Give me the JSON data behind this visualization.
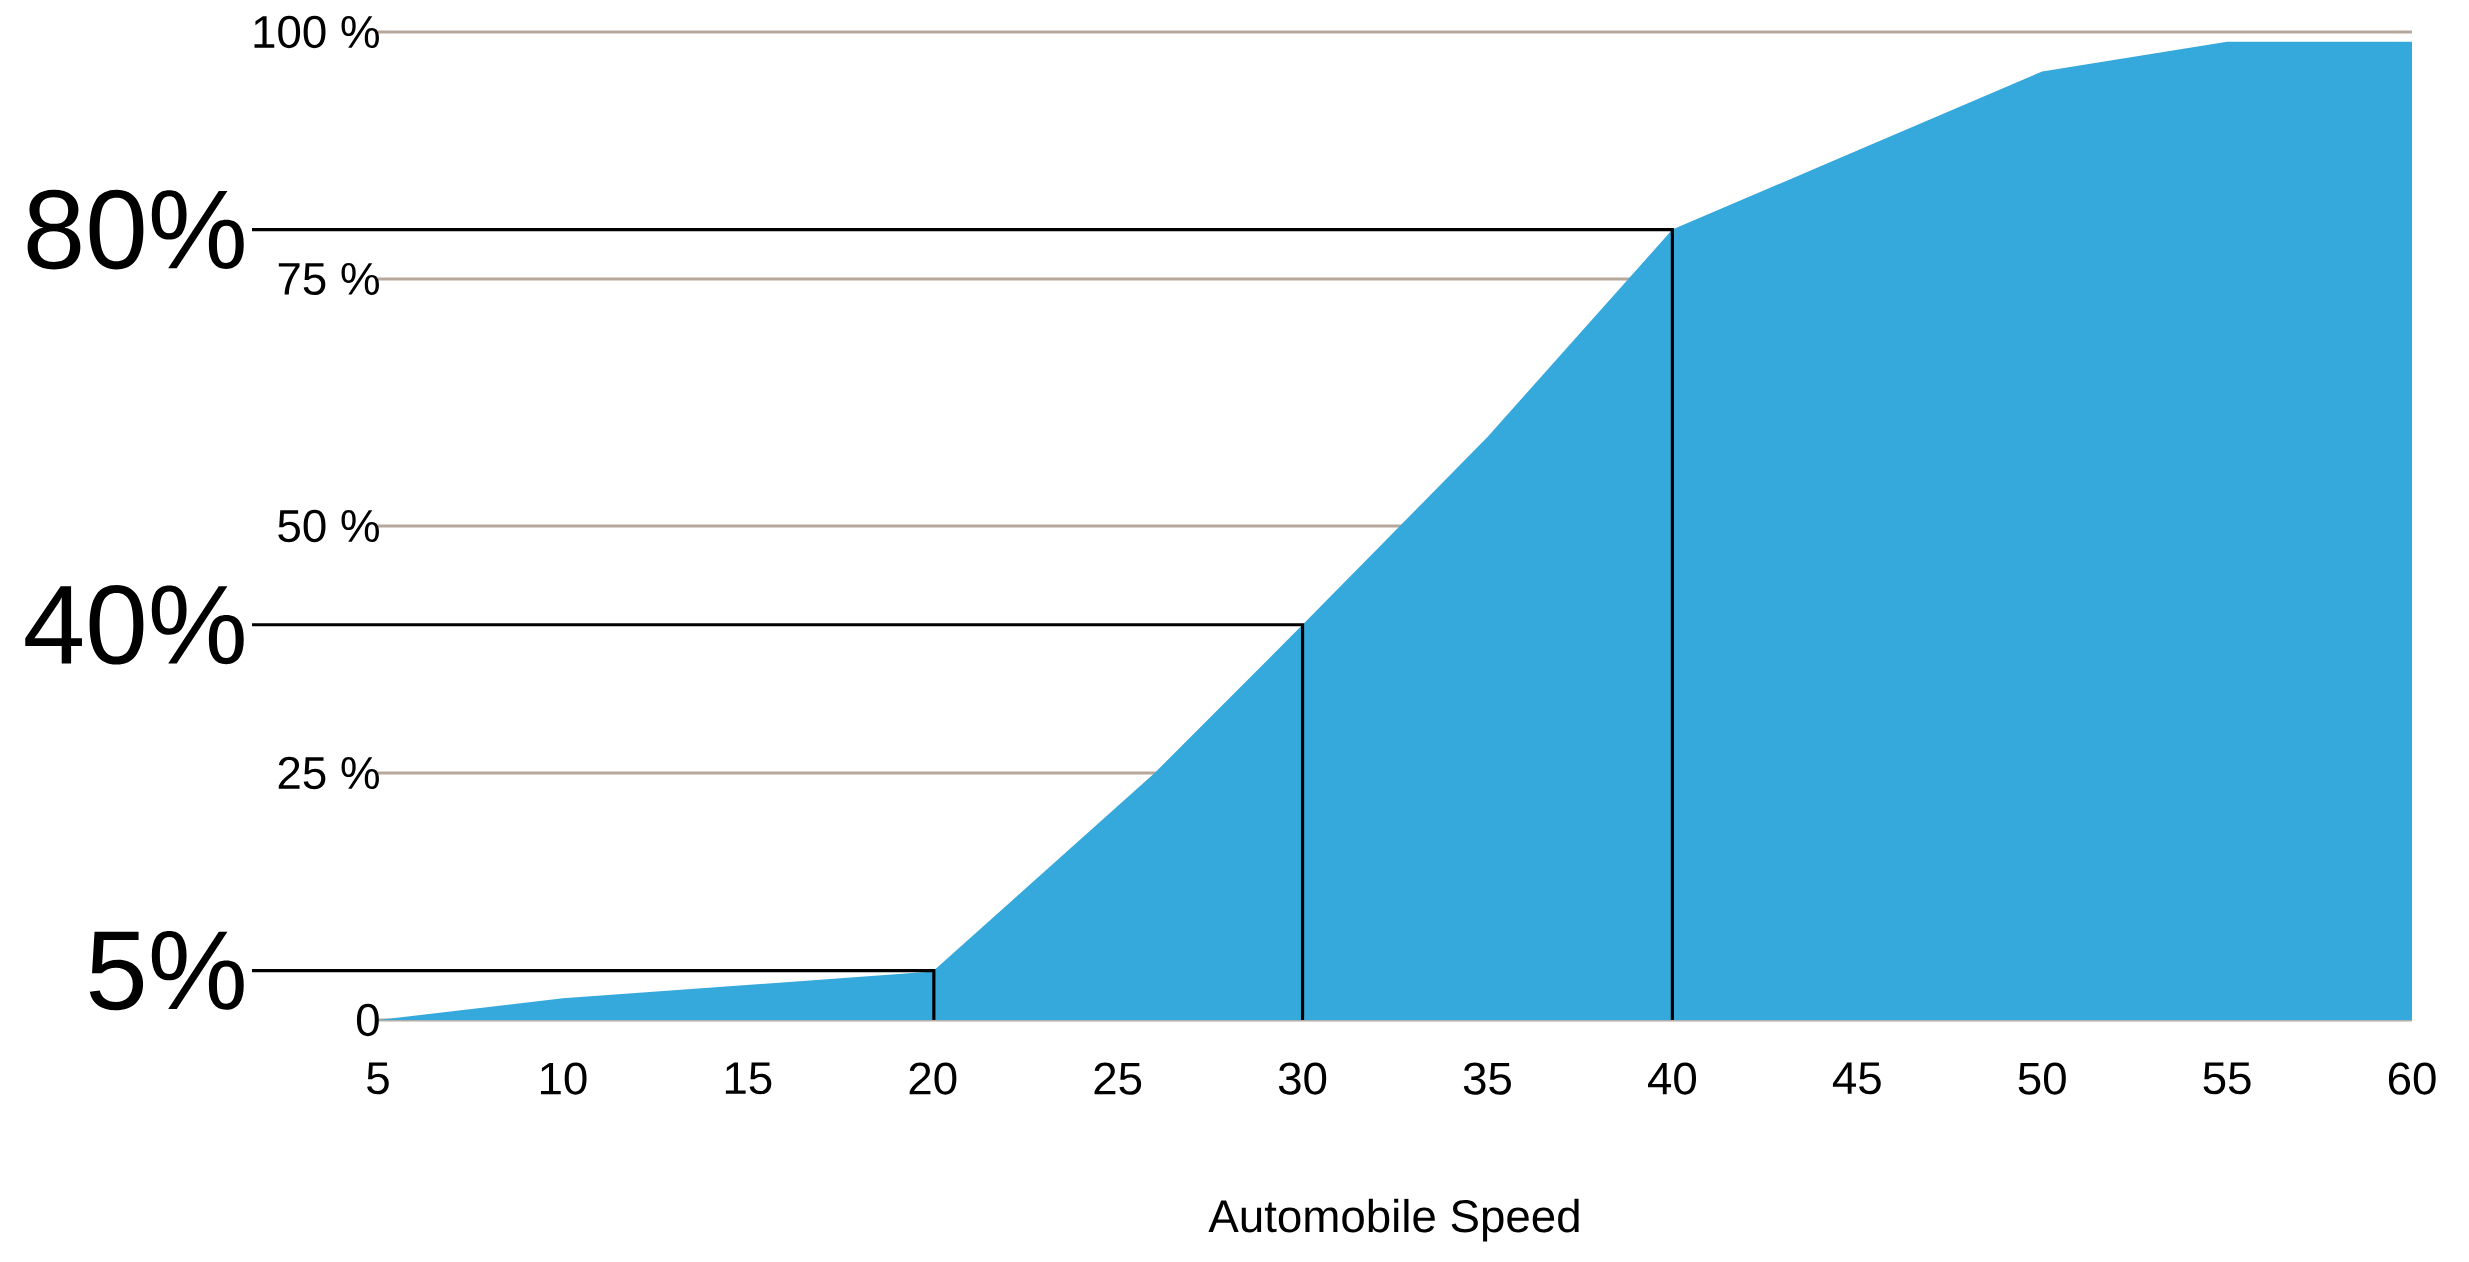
{
  "chart_data": {
    "type": "area",
    "xlabel": "Automobile Speed",
    "x": [
      5,
      10,
      20,
      26,
      30,
      35,
      40,
      45,
      50,
      55,
      60
    ],
    "values": [
      0,
      2.2,
      4.9,
      25,
      40,
      59,
      80,
      88,
      96,
      99,
      99
    ],
    "color": "#35a8dc",
    "xlim": [
      5,
      60
    ],
    "xticks": [
      5,
      10,
      15,
      20,
      25,
      30,
      35,
      40,
      45,
      50,
      55,
      60
    ],
    "ylim": [
      0,
      100
    ],
    "yticks": [
      0,
      {
        "value": 25,
        "label": "25 %"
      },
      {
        "value": 50,
        "label": "50 %"
      },
      {
        "value": 75,
        "label": "75 %"
      },
      {
        "value": 100,
        "label": "100 %"
      }
    ],
    "grid": "y",
    "ref_lines": [
      {
        "axis": "y",
        "value": 5,
        "label": "5%",
        "color": "#000000"
      },
      {
        "axis": "y",
        "value": 40,
        "label": "40%",
        "color": "#000000"
      },
      {
        "axis": "y",
        "value": 80,
        "label": "80%",
        "color": "#000000"
      }
    ]
  }
}
